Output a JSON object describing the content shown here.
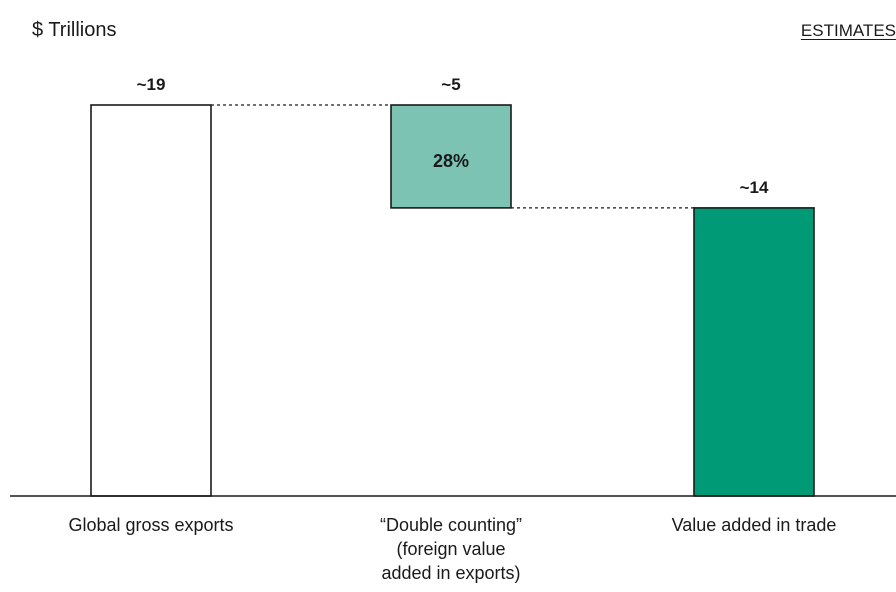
{
  "header": {
    "unit_label": "$ Trillions",
    "badge": "ESTIMATES"
  },
  "chart_data": {
    "type": "bar",
    "subtype": "waterfall",
    "categories": [
      [
        "Global gross exports"
      ],
      [
        "“Double counting”",
        "(foreign value",
        "added in exports)"
      ],
      [
        "Value added in trade"
      ]
    ],
    "steps": [
      {
        "kind": "total",
        "start": 0,
        "end": 19,
        "label": "~19",
        "color": "#ffffff",
        "stroke": "#1a1a1a"
      },
      {
        "kind": "decrease",
        "start": 19,
        "end": 14,
        "label": "~5",
        "inner_label": "28%",
        "color": "#7cc3b4",
        "stroke": "#1a1a1a"
      },
      {
        "kind": "total",
        "start": 0,
        "end": 14,
        "label": "~14",
        "color": "#009a77",
        "stroke": "#1a1a1a"
      }
    ],
    "ylim": [
      0,
      19
    ],
    "grid": false,
    "connectors": true
  }
}
